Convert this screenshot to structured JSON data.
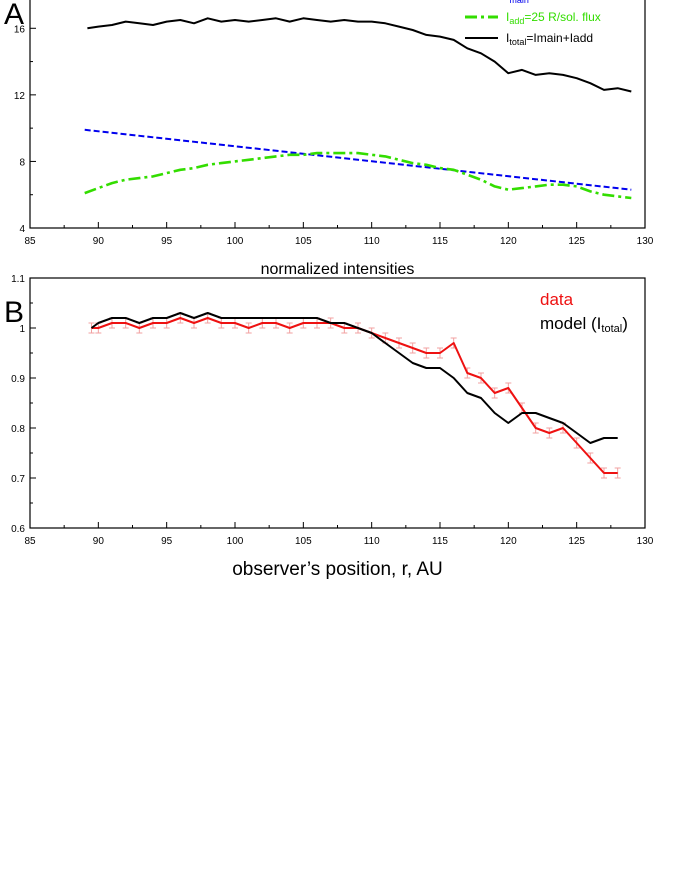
{
  "chart_data": [
    {
      "type": "line",
      "panel_label": "A",
      "title": "",
      "xlabel": "normalized intensities",
      "ylabel": "",
      "xlim": [
        85,
        130
      ],
      "ylim": [
        4,
        18
      ],
      "xticks": [
        85,
        90,
        95,
        100,
        105,
        110,
        115,
        120,
        125,
        130
      ],
      "yticks": [
        4,
        8,
        12,
        16
      ],
      "grid": false,
      "legend_position": "top-right",
      "legend": [
        {
          "text": "I",
          "sub": "main",
          "rest": "",
          "color": "#0000ee",
          "style": "dashed"
        },
        {
          "text": "I",
          "sub": "add",
          "rest": "=25 R/sol. flux",
          "color": "#33dd00",
          "style": "dashdot"
        },
        {
          "text": "I",
          "sub": "total",
          "rest": "=Imain+Iadd",
          "color": "#000000",
          "style": "solid"
        }
      ],
      "series": [
        {
          "name": "I_total",
          "color": "#000000",
          "style": "solid",
          "x": [
            89.2,
            90,
            91,
            92,
            93,
            94,
            95,
            96,
            97,
            98,
            99,
            100,
            101,
            102,
            103,
            104,
            105,
            106,
            107,
            108,
            109,
            110,
            111,
            112,
            113,
            114,
            115,
            116,
            117,
            118,
            119,
            120,
            121,
            122,
            123,
            124,
            125,
            126,
            127,
            128,
            129
          ],
          "y": [
            16.0,
            16.1,
            16.2,
            16.4,
            16.3,
            16.2,
            16.4,
            16.5,
            16.3,
            16.6,
            16.4,
            16.5,
            16.4,
            16.5,
            16.6,
            16.4,
            16.6,
            16.5,
            16.4,
            16.5,
            16.4,
            16.4,
            16.3,
            16.1,
            15.9,
            15.6,
            15.5,
            15.3,
            14.8,
            14.5,
            14.0,
            13.3,
            13.5,
            13.2,
            13.3,
            13.2,
            13.0,
            12.7,
            12.3,
            12.4,
            12.2
          ]
        },
        {
          "name": "I_main",
          "color": "#0000ee",
          "style": "dashed",
          "x": [
            89,
            129
          ],
          "y": [
            9.9,
            6.3
          ]
        },
        {
          "name": "I_add",
          "color": "#33dd00",
          "style": "dashdot",
          "x": [
            89,
            90,
            91,
            92,
            93,
            94,
            95,
            96,
            97,
            98,
            99,
            100,
            101,
            102,
            103,
            104,
            105,
            106,
            107,
            108,
            109,
            110,
            111,
            112,
            113,
            114,
            115,
            116,
            117,
            118,
            119,
            120,
            121,
            122,
            123,
            124,
            125,
            126,
            127,
            128,
            129
          ],
          "y": [
            6.1,
            6.4,
            6.7,
            6.9,
            7.0,
            7.1,
            7.3,
            7.5,
            7.6,
            7.8,
            7.9,
            8.0,
            8.1,
            8.2,
            8.3,
            8.4,
            8.4,
            8.5,
            8.5,
            8.5,
            8.5,
            8.4,
            8.3,
            8.1,
            7.9,
            7.8,
            7.6,
            7.5,
            7.2,
            6.9,
            6.5,
            6.3,
            6.4,
            6.5,
            6.6,
            6.6,
            6.5,
            6.2,
            6.0,
            5.9,
            5.8
          ]
        }
      ]
    },
    {
      "type": "line",
      "panel_label": "B",
      "title": "",
      "xlabel": "observer’s position, r, AU",
      "ylabel": "",
      "xlim": [
        85,
        130
      ],
      "ylim": [
        0.6,
        1.1
      ],
      "xticks": [
        85,
        90,
        95,
        100,
        105,
        110,
        115,
        120,
        125,
        130
      ],
      "yticks": [
        0.6,
        0.7,
        0.8,
        0.9,
        1.0,
        1.1
      ],
      "ytick_labels": [
        "0.6",
        "0.7",
        "0.8",
        "0.9",
        "1",
        "1.1"
      ],
      "grid": false,
      "legend_position": "top-right",
      "legend": [
        {
          "text": "data",
          "color": "#ee1111"
        },
        {
          "text": "model (I",
          "sub": "total",
          "rest": ")",
          "color": "#000000"
        }
      ],
      "series": [
        {
          "name": "data",
          "color": "#ee1111",
          "style": "solid",
          "error": 0.01,
          "x": [
            89.5,
            90,
            91,
            92,
            93,
            94,
            95,
            96,
            97,
            98,
            99,
            100,
            101,
            102,
            103,
            104,
            105,
            106,
            107,
            108,
            109,
            110,
            111,
            112,
            113,
            114,
            115,
            116,
            117,
            118,
            119,
            120,
            121,
            122,
            123,
            124,
            125,
            126,
            127,
            128
          ],
          "y": [
            1.0,
            1.0,
            1.01,
            1.01,
            1.0,
            1.01,
            1.01,
            1.02,
            1.01,
            1.02,
            1.01,
            1.01,
            1.0,
            1.01,
            1.01,
            1.0,
            1.01,
            1.01,
            1.01,
            1.0,
            1.0,
            0.99,
            0.98,
            0.97,
            0.96,
            0.95,
            0.95,
            0.97,
            0.91,
            0.9,
            0.87,
            0.88,
            0.84,
            0.8,
            0.79,
            0.8,
            0.77,
            0.74,
            0.71,
            0.71
          ]
        },
        {
          "name": "model (I_total)",
          "color": "#000000",
          "style": "solid",
          "x": [
            89.5,
            90,
            91,
            92,
            93,
            94,
            95,
            96,
            97,
            98,
            99,
            100,
            101,
            102,
            103,
            104,
            105,
            106,
            107,
            108,
            109,
            110,
            111,
            112,
            113,
            114,
            115,
            116,
            117,
            118,
            119,
            120,
            121,
            122,
            123,
            124,
            125,
            126,
            127,
            128
          ],
          "y": [
            1.0,
            1.01,
            1.02,
            1.02,
            1.01,
            1.02,
            1.02,
            1.03,
            1.02,
            1.03,
            1.02,
            1.02,
            1.02,
            1.02,
            1.02,
            1.02,
            1.02,
            1.02,
            1.01,
            1.01,
            1.0,
            0.99,
            0.97,
            0.95,
            0.93,
            0.92,
            0.92,
            0.9,
            0.87,
            0.86,
            0.83,
            0.81,
            0.83,
            0.83,
            0.82,
            0.81,
            0.79,
            0.77,
            0.78,
            0.78
          ]
        }
      ]
    }
  ]
}
